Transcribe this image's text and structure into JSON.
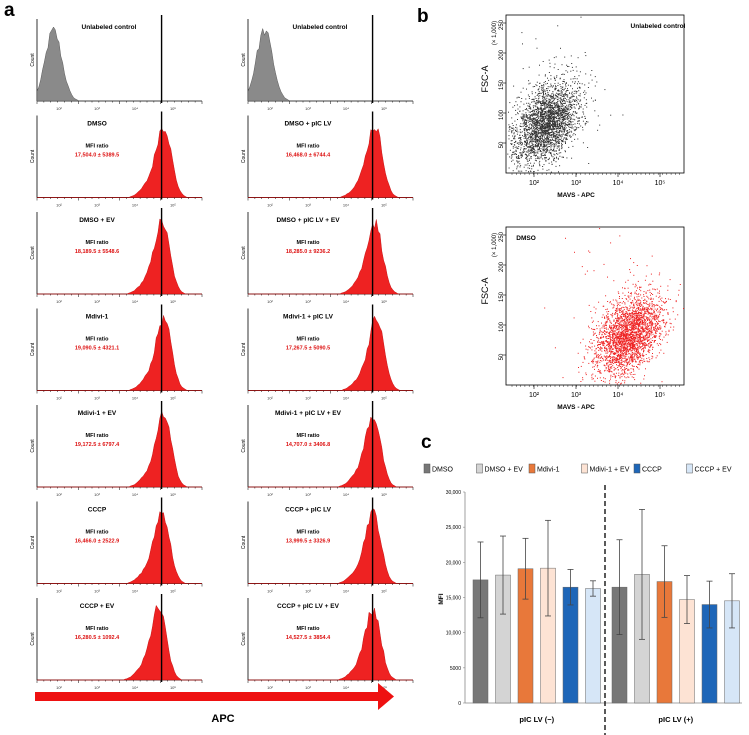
{
  "panel_labels": {
    "a": "a",
    "b": "b",
    "c": "c"
  },
  "colors": {
    "red": "#ee2222",
    "gray_hist": "#8a8a8a",
    "dark_dots": "#333333",
    "value_red": "#dd1111",
    "err": "#444444"
  },
  "panel_a": {
    "x_axis_label": "APC",
    "mfi_label": "MFI ratio",
    "tick_labels": [
      "10²",
      "10³",
      "10⁴",
      "10⁵"
    ],
    "count_label": "Count",
    "histograms": [
      {
        "column": 0,
        "row": 0,
        "title": "Unlabeled control",
        "mfi": "",
        "fill": "gray",
        "peak": 0.1
      },
      {
        "column": 0,
        "row": 1,
        "title": "DMSO",
        "mfi": "17,504.0 ± 5389.5",
        "fill": "red",
        "peak": 0.77
      },
      {
        "column": 0,
        "row": 2,
        "title": "DMSO + EV",
        "mfi": "18,189.5 ± 5548.6",
        "fill": "red",
        "peak": 0.76
      },
      {
        "column": 0,
        "row": 3,
        "title": "Mdivi-1",
        "mfi": "19,090.5 ± 4321.1",
        "fill": "red",
        "peak": 0.77
      },
      {
        "column": 0,
        "row": 4,
        "title": "Mdivi-1 + EV",
        "mfi": "19,172.5 ± 6797.4",
        "fill": "red",
        "peak": 0.77
      },
      {
        "column": 0,
        "row": 5,
        "title": "CCCP",
        "mfi": "16,466.0 ± 2522.9",
        "fill": "red",
        "peak": 0.76
      },
      {
        "column": 0,
        "row": 6,
        "title": "CCCP + EV",
        "mfi": "16,280.5 ± 1092.4",
        "fill": "red",
        "peak": 0.74
      },
      {
        "column": 1,
        "row": 0,
        "title": "Unlabeled control",
        "mfi": "",
        "fill": "gray",
        "peak": 0.1
      },
      {
        "column": 1,
        "row": 1,
        "title": "DMSO + pIC LV",
        "mfi": "16,468.0 ± 6744.4",
        "fill": "red",
        "peak": 0.77
      },
      {
        "column": 1,
        "row": 2,
        "title": "DMSO + pIC LV + EV",
        "mfi": "18,285.0 ± 9236.2",
        "fill": "red",
        "peak": 0.77
      },
      {
        "column": 1,
        "row": 3,
        "title": "Mdivi-1 + pIC LV",
        "mfi": "17,267.5 ± 5090.5",
        "fill": "red",
        "peak": 0.78
      },
      {
        "column": 1,
        "row": 4,
        "title": "Mdivi-1 + pIC LV + EV",
        "mfi": "14,707.0 ± 3406.8",
        "fill": "red",
        "peak": 0.76
      },
      {
        "column": 1,
        "row": 5,
        "title": "CCCP + pIC LV",
        "mfi": "13,999.5 ± 3326.9",
        "fill": "red",
        "peak": 0.76
      },
      {
        "column": 1,
        "row": 6,
        "title": "CCCP + pIC LV + EV",
        "mfi": "14,527.5 ± 3854.4",
        "fill": "red",
        "peak": 0.76
      }
    ]
  },
  "panel_b": {
    "x_label": "MAVS - APC",
    "y_label": "FSC-A",
    "y_unit": "(× 1,000)",
    "y_ticks": [
      "250",
      "200",
      "150",
      "100",
      "50"
    ],
    "x_ticks": [
      "10²",
      "10³",
      "10⁴",
      "10⁵"
    ],
    "plots": [
      {
        "title": "Unlabeled control",
        "color": "dark"
      },
      {
        "title": "DMSO",
        "color": "red"
      }
    ]
  },
  "chart_data": {
    "type": "bar",
    "title": "",
    "xlabel": "",
    "ylabel": "MFI",
    "ylim": [
      0,
      30000
    ],
    "yticks": [
      "0",
      "5000",
      "10,000",
      "15,000",
      "20,000",
      "25,000",
      "30,000"
    ],
    "groups": [
      "pIC LV (−)",
      "pIC LV (+)"
    ],
    "series": [
      {
        "name": "DMSO",
        "color": "#777777",
        "values": [
          17504.0,
          16468.0
        ],
        "errors": [
          5389.5,
          6744.4
        ]
      },
      {
        "name": "DMSO + EV",
        "color": "#d4d4d4",
        "values": [
          18189.5,
          18285.0
        ],
        "errors": [
          5548.6,
          9236.2
        ]
      },
      {
        "name": "Mdivi-1",
        "color": "#e8783a",
        "values": [
          19090.5,
          17267.5
        ],
        "errors": [
          4321.1,
          5090.5
        ]
      },
      {
        "name": "Mdivi-1 + EV",
        "color": "#fde3d4",
        "values": [
          19172.5,
          14707.0
        ],
        "errors": [
          6797.4,
          3406.8
        ]
      },
      {
        "name": "CCCP",
        "color": "#1e66b8",
        "values": [
          16466.0,
          13999.5
        ],
        "errors": [
          2522.9,
          3326.9
        ]
      },
      {
        "name": "CCCP + EV",
        "color": "#d6e6f7",
        "values": [
          16280.5,
          14527.5
        ],
        "errors": [
          1092.4,
          3854.4
        ]
      }
    ]
  }
}
